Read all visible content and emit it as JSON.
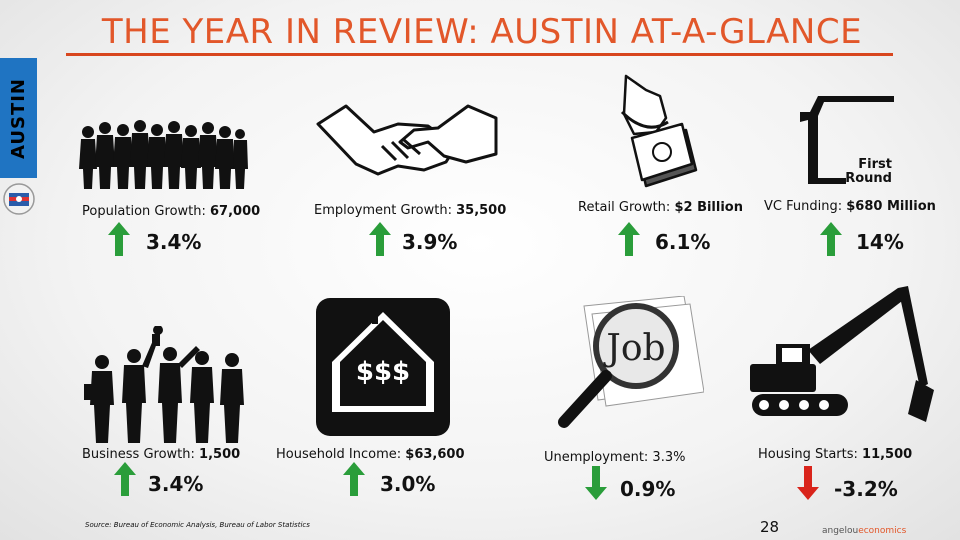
{
  "title": "THE YEAR IN REVIEW: AUSTIN AT-A-GLANCE",
  "side_tab": "AUSTIN",
  "accent_color": "#e2572a",
  "up_color": "#2a9d3a",
  "down_color": "#d9241b",
  "stats": [
    {
      "label": "Population Growth:",
      "value": "67,000",
      "pct": "3.4%",
      "direction": "up",
      "icon": "people-crowd-icon"
    },
    {
      "label": "Employment Growth:",
      "value": "35,500",
      "pct": "3.9%",
      "direction": "up",
      "icon": "handshake-icon"
    },
    {
      "label": "Retail Growth:",
      "value": "$2 Billion",
      "pct": "6.1%",
      "direction": "up",
      "icon": "hand-money-icon"
    },
    {
      "label": "VC Funding:",
      "value": "$680 Million",
      "pct": "14%",
      "direction": "up",
      "icon": "first-round-logo"
    },
    {
      "label": "Business Growth:",
      "value": "1,500",
      "pct": "3.4%",
      "direction": "up",
      "icon": "business-people-icon"
    },
    {
      "label": "Household Income:",
      "value": "$63,600",
      "pct": "3.0%",
      "direction": "up",
      "icon": "house-dollar-icon"
    },
    {
      "label": "Unemployment: 3.3%",
      "value": "",
      "pct": "0.9%",
      "direction": "down",
      "icon": "job-magnifier-icon"
    },
    {
      "label": "Housing Starts:",
      "value": "11,500",
      "pct": "-3.2%",
      "direction": "down",
      "icon": "excavator-icon"
    }
  ],
  "first_round_logo": {
    "line1": "First",
    "line2": "Round"
  },
  "job_text": "Job",
  "house_text": "$$$",
  "source": "Source: Bureau of Economic Analysis, Bureau of Labor Statistics",
  "page_number": "28",
  "brand": {
    "part1": "angelou",
    "part2": "economics"
  }
}
